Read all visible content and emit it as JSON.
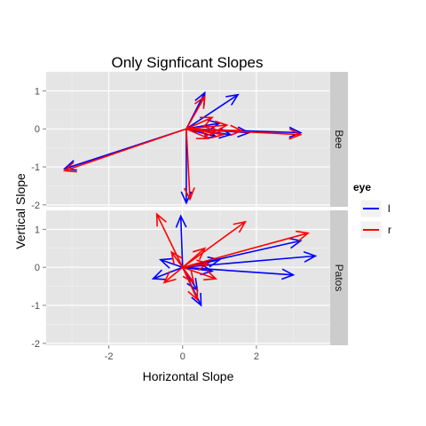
{
  "chart_data": {
    "type": "vector-field",
    "title": "Only Signficant Slopes",
    "xlabel": "Horizontal Slope",
    "ylabel": "Vertical Slope",
    "xlim": [
      -3.7,
      4.0
    ],
    "ylim": [
      -2.05,
      1.5
    ],
    "xticks": [
      -2,
      0,
      2
    ],
    "yticks": [
      -2,
      -1,
      0,
      1
    ],
    "grid": true,
    "legend": {
      "title": "eye",
      "position": "right",
      "entries": [
        {
          "label": "l",
          "color": "#0000ff"
        },
        {
          "label": "r",
          "color": "#ff0000"
        }
      ]
    },
    "facets": [
      {
        "label": "Bee",
        "vectors": [
          {
            "eye": "l",
            "x0": 0.1,
            "y0": 0.0,
            "x1": 3.2,
            "y1": -0.1
          },
          {
            "eye": "l",
            "x0": 0.1,
            "y0": 0.0,
            "x1": 1.5,
            "y1": 0.9
          },
          {
            "eye": "l",
            "x0": 0.1,
            "y0": 0.0,
            "x1": 0.6,
            "y1": 0.95
          },
          {
            "eye": "l",
            "x0": 0.1,
            "y0": 0.0,
            "x1": 0.1,
            "y1": -1.95
          },
          {
            "eye": "l",
            "x0": 0.1,
            "y0": 0.0,
            "x1": -3.2,
            "y1": -1.05
          },
          {
            "eye": "l",
            "x0": 0.1,
            "y0": 0.0,
            "x1": 1.8,
            "y1": -0.1
          },
          {
            "eye": "l",
            "x0": 0.1,
            "y0": 0.0,
            "x1": 1.0,
            "y1": 0.15
          },
          {
            "eye": "l",
            "x0": 0.1,
            "y0": 0.0,
            "x1": 1.3,
            "y1": -0.15
          },
          {
            "eye": "l",
            "x0": 0.1,
            "y0": 0.0,
            "x1": 0.9,
            "y1": -0.2
          },
          {
            "eye": "r",
            "x0": 0.1,
            "y0": 0.0,
            "x1": 3.2,
            "y1": -0.15
          },
          {
            "eye": "r",
            "x0": 0.1,
            "y0": 0.0,
            "x1": -3.2,
            "y1": -1.1
          },
          {
            "eye": "r",
            "x0": 0.1,
            "y0": 0.0,
            "x1": 0.6,
            "y1": 0.85
          },
          {
            "eye": "r",
            "x0": 0.1,
            "y0": 0.0,
            "x1": 0.2,
            "y1": -1.85
          },
          {
            "eye": "r",
            "x0": 0.1,
            "y0": 0.0,
            "x1": 1.6,
            "y1": -0.05
          },
          {
            "eye": "r",
            "x0": 0.1,
            "y0": 0.0,
            "x1": 1.1,
            "y1": -0.15
          },
          {
            "eye": "r",
            "x0": 0.1,
            "y0": 0.0,
            "x1": 0.8,
            "y1": 0.3
          },
          {
            "eye": "r",
            "x0": 0.1,
            "y0": 0.0,
            "x1": 1.2,
            "y1": 0.1
          },
          {
            "eye": "r",
            "x0": 0.1,
            "y0": 0.0,
            "x1": 0.7,
            "y1": -0.25
          },
          {
            "eye": "r",
            "x0": 0.1,
            "y0": 0.0,
            "x1": 0.9,
            "y1": -0.1
          }
        ]
      },
      {
        "label": "Patos",
        "vectors": [
          {
            "eye": "l",
            "x0": 0.0,
            "y0": 0.0,
            "x1": 3.6,
            "y1": 0.3
          },
          {
            "eye": "l",
            "x0": 0.0,
            "y0": 0.0,
            "x1": 3.0,
            "y1": -0.2
          },
          {
            "eye": "l",
            "x0": 0.0,
            "y0": 0.0,
            "x1": 3.2,
            "y1": 0.7
          },
          {
            "eye": "l",
            "x0": 0.0,
            "y0": 0.0,
            "x1": -0.05,
            "y1": 1.35
          },
          {
            "eye": "l",
            "x0": 0.0,
            "y0": 0.0,
            "x1": -0.8,
            "y1": -0.3
          },
          {
            "eye": "l",
            "x0": 0.0,
            "y0": 0.0,
            "x1": -0.6,
            "y1": 0.2
          },
          {
            "eye": "l",
            "x0": 0.0,
            "y0": 0.0,
            "x1": 0.5,
            "y1": -1.0
          },
          {
            "eye": "l",
            "x0": 0.0,
            "y0": 0.0,
            "x1": 1.0,
            "y1": 0.2
          },
          {
            "eye": "l",
            "x0": 0.0,
            "y0": 0.0,
            "x1": 0.4,
            "y1": -0.6
          },
          {
            "eye": "l",
            "x0": 0.0,
            "y0": 0.0,
            "x1": 0.8,
            "y1": -0.1
          },
          {
            "eye": "r",
            "x0": 0.0,
            "y0": 0.0,
            "x1": 3.4,
            "y1": 0.9
          },
          {
            "eye": "r",
            "x0": 0.0,
            "y0": 0.0,
            "x1": 1.7,
            "y1": 1.2
          },
          {
            "eye": "r",
            "x0": 0.0,
            "y0": 0.0,
            "x1": -0.7,
            "y1": 1.4
          },
          {
            "eye": "r",
            "x0": 0.0,
            "y0": 0.0,
            "x1": 0.4,
            "y1": -0.85
          },
          {
            "eye": "r",
            "x0": 0.0,
            "y0": 0.0,
            "x1": -0.5,
            "y1": -0.4
          },
          {
            "eye": "r",
            "x0": 0.0,
            "y0": 0.0,
            "x1": 0.9,
            "y1": -0.3
          },
          {
            "eye": "r",
            "x0": 0.0,
            "y0": 0.0,
            "x1": 0.6,
            "y1": 0.5
          },
          {
            "eye": "r",
            "x0": 0.0,
            "y0": 0.0,
            "x1": -0.3,
            "y1": 0.4
          },
          {
            "eye": "r",
            "x0": 0.0,
            "y0": 0.0,
            "x1": 0.3,
            "y1": -0.4
          },
          {
            "eye": "r",
            "x0": 0.0,
            "y0": 0.0,
            "x1": 0.7,
            "y1": 0.1
          }
        ]
      }
    ]
  }
}
